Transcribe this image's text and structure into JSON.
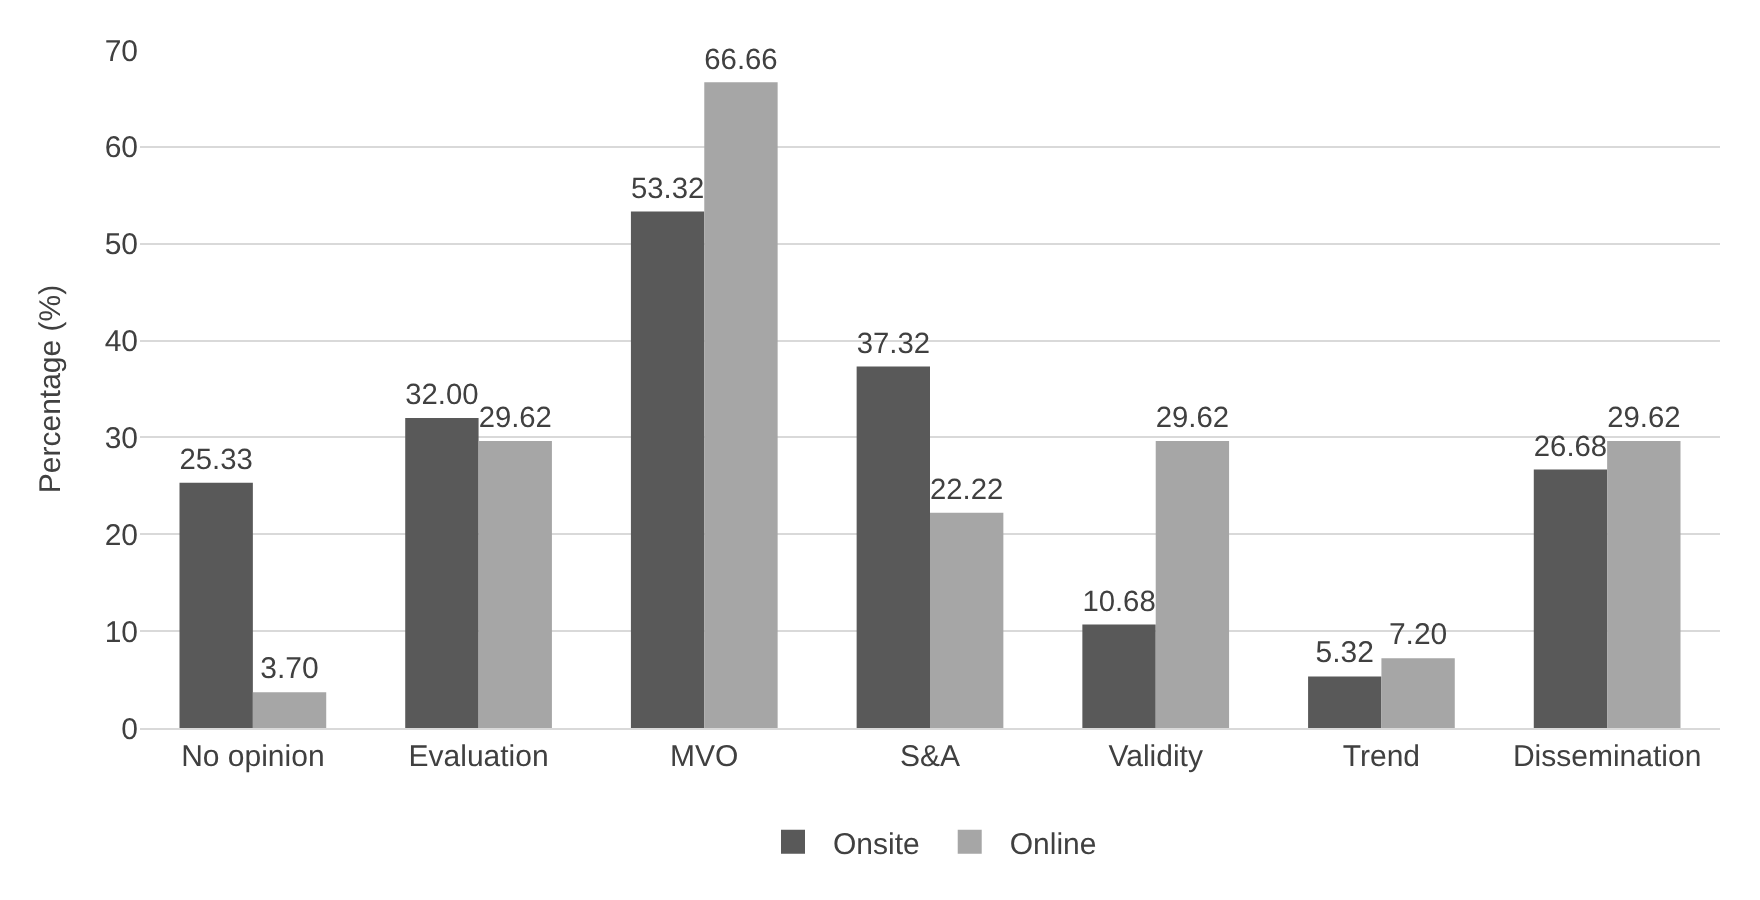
{
  "chart_data": {
    "type": "bar",
    "ylabel": "Percentage (%)",
    "categories": [
      "No opinion",
      "Evaluation",
      "MVO",
      "S&A",
      "Validity",
      "Trend",
      "Dissemination"
    ],
    "series": [
      {
        "name": "Onsite",
        "color": "#595959",
        "values": [
          25.33,
          32.0,
          53.32,
          37.32,
          10.68,
          5.32,
          26.68
        ],
        "value_labels": [
          "25.33",
          "32.00",
          "53.32",
          "37.32",
          "10.68",
          "5.32",
          "26.68"
        ]
      },
      {
        "name": "Online",
        "color": "#a6a6a6",
        "values": [
          3.7,
          29.62,
          66.66,
          22.22,
          29.62,
          7.2,
          29.62
        ],
        "value_labels": [
          "3.70",
          "29.62",
          "66.66",
          "22.22",
          "29.62",
          "7.20",
          "29.62"
        ]
      }
    ],
    "ylim": [
      0,
      70
    ],
    "yticks": [
      0,
      10,
      20,
      30,
      40,
      50,
      60,
      70
    ],
    "grid": "y",
    "legend": "bottom"
  }
}
